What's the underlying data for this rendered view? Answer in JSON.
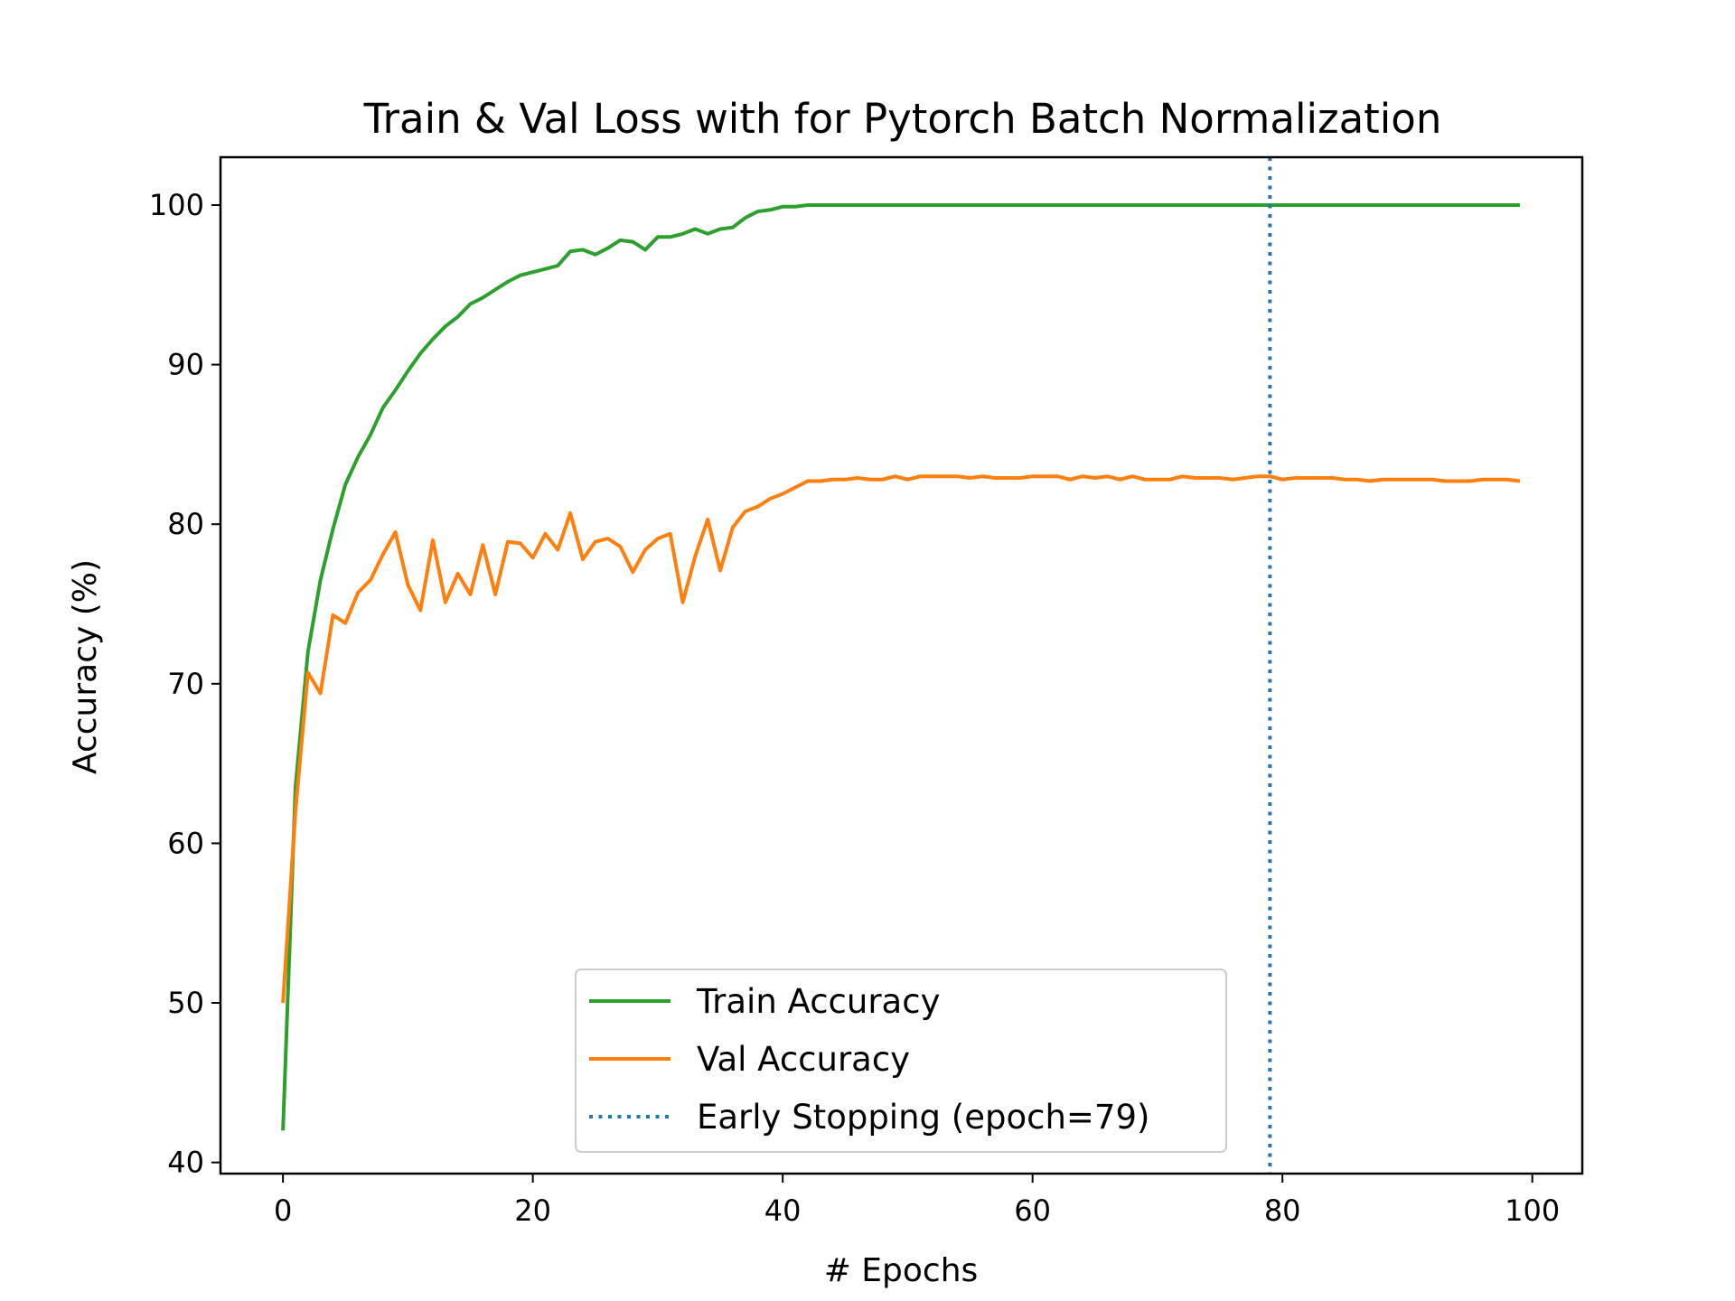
{
  "chart_data": {
    "type": "line",
    "title": "Train & Val Loss with for Pytorch Batch Normalization",
    "xlabel": "# Epochs",
    "ylabel": "Accuracy (%)",
    "xlim": [
      -5,
      104
    ],
    "ylim": [
      39.3,
      103.0
    ],
    "xticks": [
      0,
      20,
      40,
      60,
      80,
      100
    ],
    "yticks": [
      40,
      50,
      60,
      70,
      80,
      90,
      100
    ],
    "grid": false,
    "legend_position": "lower center",
    "series": [
      {
        "name": "Train Accuracy",
        "color": "#2ca02c",
        "style": "solid",
        "x": [
          0,
          1,
          2,
          3,
          4,
          5,
          6,
          7,
          8,
          9,
          10,
          11,
          12,
          13,
          14,
          15,
          16,
          17,
          18,
          19,
          20,
          21,
          22,
          23,
          24,
          25,
          26,
          27,
          28,
          29,
          30,
          31,
          32,
          33,
          34,
          35,
          36,
          37,
          38,
          39,
          40,
          41,
          42,
          43,
          44,
          45,
          46,
          47,
          48,
          49,
          50,
          51,
          52,
          53,
          54,
          55,
          56,
          57,
          58,
          59,
          60,
          61,
          62,
          63,
          64,
          65,
          66,
          67,
          68,
          69,
          70,
          71,
          72,
          73,
          74,
          75,
          76,
          77,
          78,
          79,
          80,
          81,
          82,
          83,
          84,
          85,
          86,
          87,
          88,
          89,
          90,
          91,
          92,
          93,
          94,
          95,
          96,
          97,
          98,
          99
        ],
        "y": [
          42.0,
          63.5,
          72.0,
          76.5,
          79.7,
          82.5,
          84.2,
          85.6,
          87.3,
          88.4,
          89.6,
          90.7,
          91.6,
          92.4,
          93.0,
          93.8,
          94.2,
          94.7,
          95.2,
          95.6,
          95.8,
          96.0,
          96.2,
          97.1,
          97.2,
          96.9,
          97.3,
          97.8,
          97.7,
          97.2,
          98.0,
          98.0,
          98.2,
          98.5,
          98.2,
          98.5,
          98.6,
          99.2,
          99.6,
          99.7,
          99.9,
          99.9,
          100.0,
          100.0,
          100.0,
          100.0,
          100.0,
          100.0,
          100.0,
          100.0,
          100.0,
          100.0,
          100.0,
          100.0,
          100.0,
          100.0,
          100.0,
          100.0,
          100.0,
          100.0,
          100.0,
          100.0,
          100.0,
          100.0,
          100.0,
          100.0,
          100.0,
          100.0,
          100.0,
          100.0,
          100.0,
          100.0,
          100.0,
          100.0,
          100.0,
          100.0,
          100.0,
          100.0,
          100.0,
          100.0,
          100.0,
          100.0,
          100.0,
          100.0,
          100.0,
          100.0,
          100.0,
          100.0,
          100.0,
          100.0,
          100.0,
          100.0,
          100.0,
          100.0,
          100.0,
          100.0,
          100.0,
          100.0,
          100.0,
          100.0
        ]
      },
      {
        "name": "Val Accuracy",
        "color": "#ff7f0e",
        "style": "solid",
        "x": [
          0,
          1,
          2,
          3,
          4,
          5,
          6,
          7,
          8,
          9,
          10,
          11,
          12,
          13,
          14,
          15,
          16,
          17,
          18,
          19,
          20,
          21,
          22,
          23,
          24,
          25,
          26,
          27,
          28,
          29,
          30,
          31,
          32,
          33,
          34,
          35,
          36,
          37,
          38,
          39,
          40,
          41,
          42,
          43,
          44,
          45,
          46,
          47,
          48,
          49,
          50,
          51,
          52,
          53,
          54,
          55,
          56,
          57,
          58,
          59,
          60,
          61,
          62,
          63,
          64,
          65,
          66,
          67,
          68,
          69,
          70,
          71,
          72,
          73,
          74,
          75,
          76,
          77,
          78,
          79,
          80,
          81,
          82,
          83,
          84,
          85,
          86,
          87,
          88,
          89,
          90,
          91,
          92,
          93,
          94,
          95,
          96,
          97,
          98,
          99
        ],
        "y": [
          50.0,
          62.0,
          70.7,
          69.4,
          74.3,
          73.8,
          75.7,
          76.5,
          78.1,
          79.5,
          76.2,
          74.6,
          79.0,
          75.1,
          76.9,
          75.6,
          78.7,
          75.6,
          78.9,
          78.8,
          77.9,
          79.4,
          78.4,
          80.7,
          77.8,
          78.9,
          79.1,
          78.6,
          77.0,
          78.4,
          79.1,
          79.4,
          75.1,
          78.0,
          80.3,
          77.1,
          79.8,
          80.8,
          81.1,
          81.6,
          81.9,
          82.3,
          82.7,
          82.7,
          82.8,
          82.8,
          82.9,
          82.8,
          82.8,
          83.0,
          82.8,
          83.0,
          83.0,
          83.0,
          83.0,
          82.9,
          83.0,
          82.9,
          82.9,
          82.9,
          83.0,
          83.0,
          83.0,
          82.8,
          83.0,
          82.9,
          83.0,
          82.8,
          83.0,
          82.8,
          82.8,
          82.8,
          83.0,
          82.9,
          82.9,
          82.9,
          82.8,
          82.9,
          83.0,
          83.0,
          82.8,
          82.9,
          82.9,
          82.9,
          82.9,
          82.8,
          82.8,
          82.7,
          82.8,
          82.8,
          82.8,
          82.8,
          82.8,
          82.7,
          82.7,
          82.7,
          82.8,
          82.8,
          82.8,
          82.7
        ]
      },
      {
        "name": "Early Stopping (epoch=79)",
        "color": "#1f77b4",
        "style": "dotted",
        "vline_x": 79
      }
    ]
  }
}
